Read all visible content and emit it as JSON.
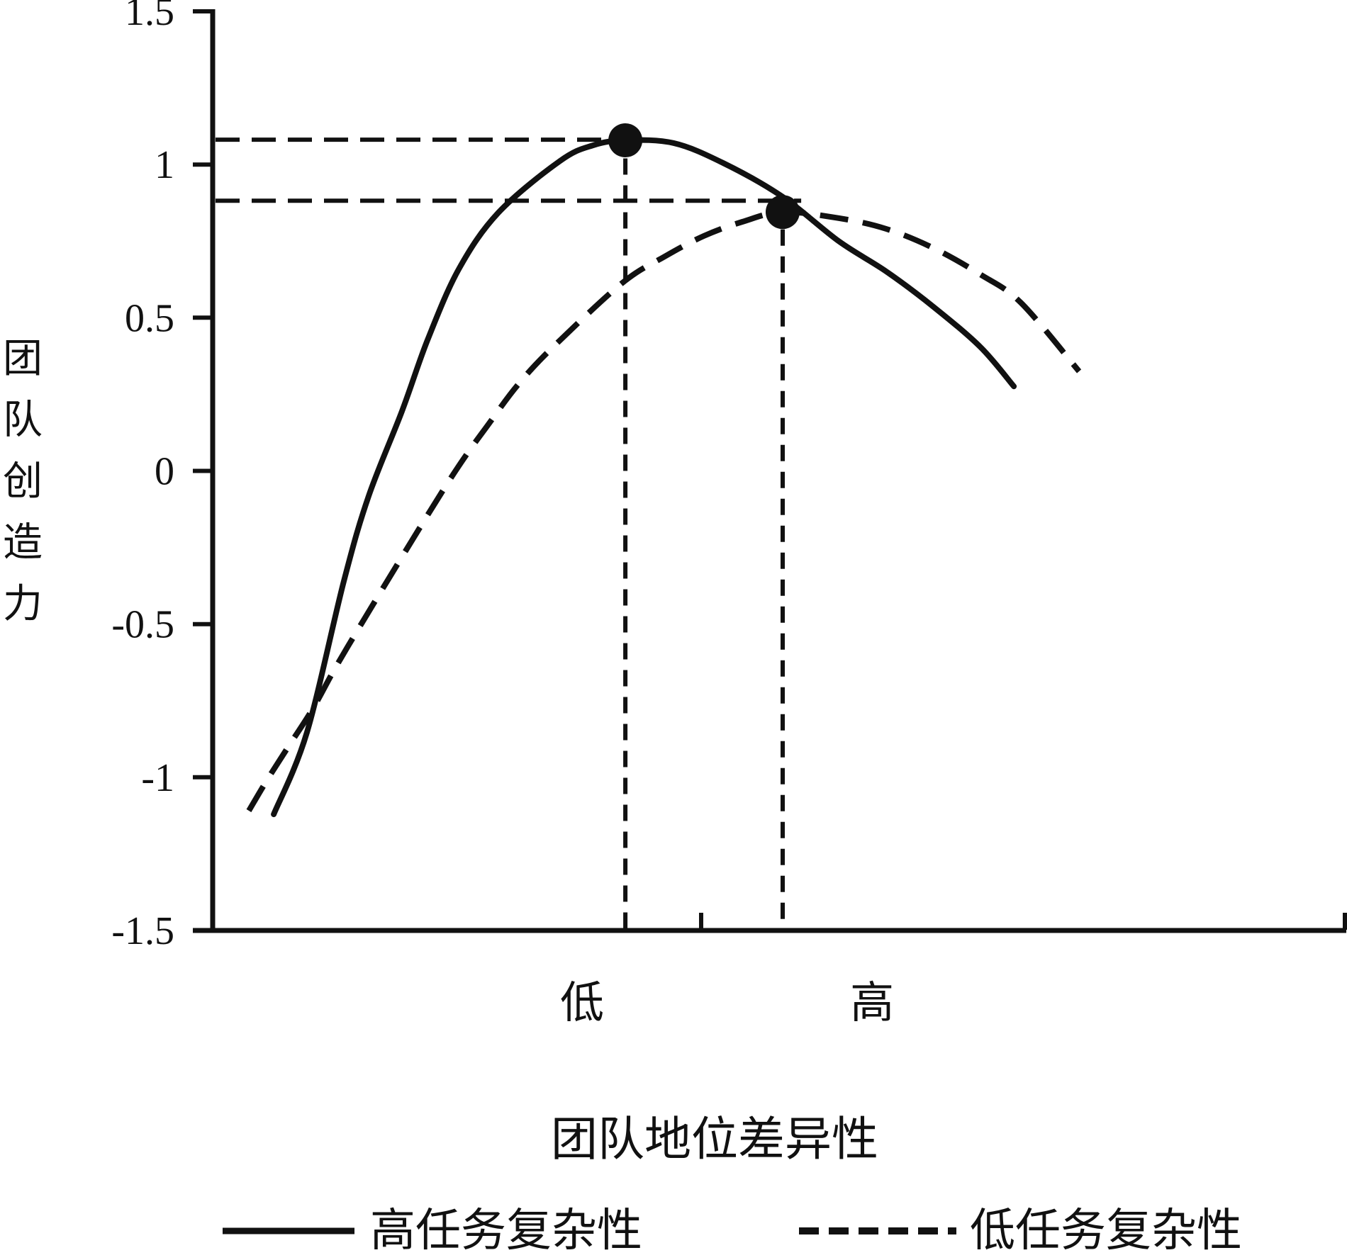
{
  "figure": {
    "colors": {
      "ink": "#111111",
      "background": "#ffffff"
    },
    "y_axis": {
      "title": "团队创造力",
      "tick_labels": [
        "1.5",
        "1",
        "0.5",
        "0",
        "-0.5",
        "-1",
        "-1.5"
      ],
      "tick_values": [
        1.5,
        1,
        0.5,
        0,
        -0.5,
        -1,
        -1.5
      ]
    },
    "x_axis": {
      "title": "团队地位差异性",
      "tick_labels": [
        {
          "label": "低",
          "pos": 0.3256
        },
        {
          "label": "高",
          "pos": 0.5813
        }
      ],
      "tick_marks": [
        0.4306,
        0.9981
      ]
    },
    "legend": [
      {
        "label": "高任务复杂性",
        "style": "solid"
      },
      {
        "label": "低任务复杂性",
        "style": "dashed"
      }
    ]
  },
  "chart_data": {
    "type": "line",
    "title": "",
    "xlabel": "团队地位差异性",
    "ylabel": "团队创造力",
    "ylim": [
      -1.5,
      1.5
    ],
    "y_ticks": [
      1.5,
      1,
      0.5,
      0,
      -0.5,
      -1,
      -1.5
    ],
    "x_tick_text": [
      "低",
      "高"
    ],
    "x_unit": "fraction of x-axis length (axis unlabeled numerically)",
    "legend_position": "bottom",
    "grid": false,
    "series": [
      {
        "name": "高任务复杂性",
        "line": "solid",
        "peak": {
          "x": 0.364,
          "y": 1.08
        },
        "points": [
          [
            0.0538,
            -1.121
          ],
          [
            0.0831,
            -0.853
          ],
          [
            0.1156,
            -0.36
          ],
          [
            0.1375,
            -0.082
          ],
          [
            0.1669,
            0.195
          ],
          [
            0.1894,
            0.427
          ],
          [
            0.2169,
            0.658
          ],
          [
            0.2519,
            0.843
          ],
          [
            0.3063,
            1.012
          ],
          [
            0.3356,
            1.063
          ],
          [
            0.3638,
            1.079
          ],
          [
            0.4063,
            1.07
          ],
          [
            0.45,
            1.005
          ],
          [
            0.5019,
            0.896
          ],
          [
            0.5519,
            0.75
          ],
          [
            0.5938,
            0.651
          ],
          [
            0.6356,
            0.535
          ],
          [
            0.6769,
            0.404
          ],
          [
            0.7063,
            0.276
          ]
        ]
      },
      {
        "name": "低任务复杂性",
        "line": "dashed",
        "peak": {
          "x": 0.5025,
          "y": 0.845
        },
        "points": [
          [
            0.0319,
            -1.109
          ],
          [
            0.0481,
            -1.008
          ],
          [
            0.0669,
            -0.899
          ],
          [
            0.0894,
            -0.769
          ],
          [
            0.1188,
            -0.575
          ],
          [
            0.205,
            -0.052
          ],
          [
            0.2456,
            0.165
          ],
          [
            0.2706,
            0.288
          ],
          [
            0.3,
            0.404
          ],
          [
            0.3606,
            0.612
          ],
          [
            0.3981,
            0.699
          ],
          [
            0.4331,
            0.767
          ],
          [
            0.4669,
            0.813
          ],
          [
            0.5025,
            0.845
          ],
          [
            0.5519,
            0.825
          ],
          [
            0.5938,
            0.79
          ],
          [
            0.6356,
            0.727
          ],
          [
            0.6769,
            0.641
          ],
          [
            0.7125,
            0.549
          ],
          [
            0.7638,
            0.325
          ]
        ]
      }
    ],
    "annotations": {
      "h_dash_lines": [
        {
          "y": 1.081,
          "x_end": 0.3638
        },
        {
          "y": 0.882,
          "x_end": 0.5188
        }
      ],
      "v_dash_lines": [
        {
          "x": 0.3638,
          "y_top": 1.02
        },
        {
          "x": 0.5025,
          "y_top": 0.788
        }
      ],
      "peak_dots": [
        {
          "x": 0.3638,
          "y": 1.079
        },
        {
          "x": 0.5025,
          "y": 0.845
        }
      ]
    }
  }
}
